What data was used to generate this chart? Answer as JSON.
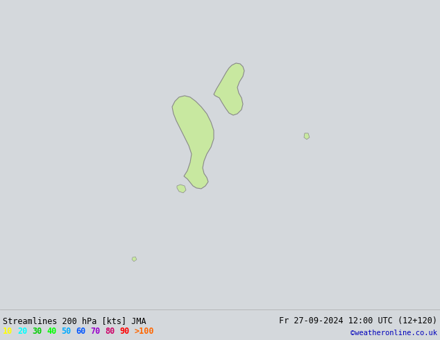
{
  "title": "Streamlines 200 hPa [kts] JMA",
  "date_str": "Fr 27-09-2024 12:00 UTC (12+120)",
  "credit": "©weatheronline.co.uk",
  "bg_color": "#d4d8dc",
  "land_color": "#c8e8a0",
  "land_edge_color": "#888888",
  "legend_labels": [
    "10",
    "20",
    "30",
    "40",
    "50",
    "60",
    "70",
    "80",
    "90",
    ">100"
  ],
  "legend_colors": [
    "#ffff00",
    "#00ffff",
    "#00cc00",
    "#00ff00",
    "#00aaff",
    "#0055ff",
    "#9900cc",
    "#cc0066",
    "#ff0000",
    "#ff6600"
  ],
  "figsize": [
    6.34,
    4.9
  ],
  "dpi": 100
}
